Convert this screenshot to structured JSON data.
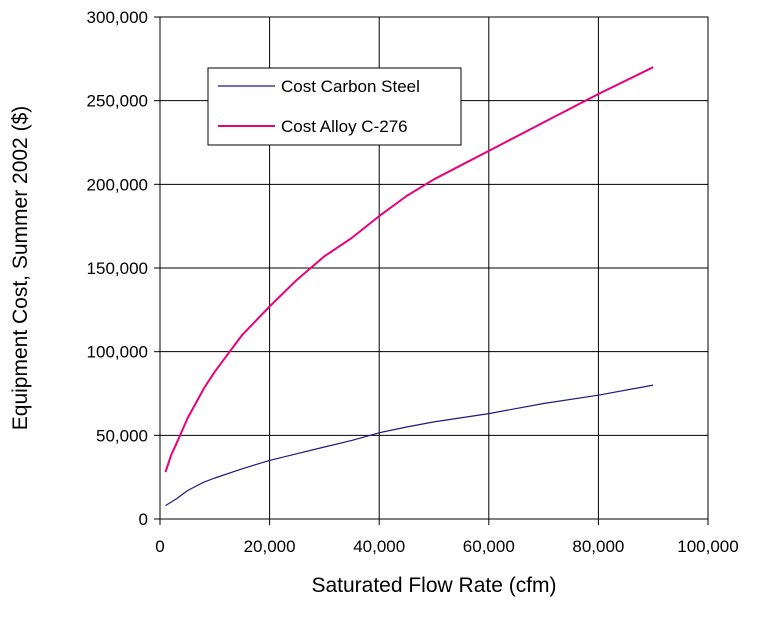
{
  "chart_data": {
    "type": "line",
    "title": "",
    "xlabel": "Saturated Flow Rate  (cfm)",
    "ylabel": "Equipment Cost, Summer 2002 ($)",
    "xlim": [
      0,
      100000
    ],
    "ylim": [
      0,
      300000
    ],
    "x_ticks": [
      0,
      20000,
      40000,
      60000,
      80000,
      100000
    ],
    "y_ticks": [
      0,
      50000,
      100000,
      150000,
      200000,
      250000,
      300000
    ],
    "x_tick_labels": [
      "0",
      "20,000",
      "40,000",
      "60,000",
      "80,000",
      "100,000"
    ],
    "y_tick_labels": [
      "0",
      "50,000",
      "100,000",
      "150,000",
      "200,000",
      "250,000",
      "300,000"
    ],
    "grid": true,
    "legend_position": "upper-left inside plot",
    "series": [
      {
        "name": "Cost Carbon Steel",
        "color": "#1b1b80",
        "points": [
          [
            1000,
            8000
          ],
          [
            3000,
            12000
          ],
          [
            5000,
            17000
          ],
          [
            8000,
            22000
          ],
          [
            10000,
            24500
          ],
          [
            15000,
            30000
          ],
          [
            20000,
            35000
          ],
          [
            25000,
            39000
          ],
          [
            30000,
            43000
          ],
          [
            35000,
            47000
          ],
          [
            40000,
            51500
          ],
          [
            45000,
            55000
          ],
          [
            50000,
            58000
          ],
          [
            60000,
            63000
          ],
          [
            70000,
            69000
          ],
          [
            80000,
            74000
          ],
          [
            90000,
            80000
          ]
        ]
      },
      {
        "name": "Cost  Alloy C-276",
        "color": "#e8007c",
        "points": [
          [
            1000,
            28000
          ],
          [
            2000,
            38000
          ],
          [
            3000,
            45000
          ],
          [
            5000,
            60000
          ],
          [
            8000,
            78000
          ],
          [
            10000,
            88000
          ],
          [
            15000,
            110000
          ],
          [
            20000,
            127000
          ],
          [
            25000,
            143000
          ],
          [
            30000,
            157000
          ],
          [
            35000,
            168000
          ],
          [
            40000,
            181000
          ],
          [
            45000,
            193000
          ],
          [
            50000,
            203000
          ],
          [
            60000,
            220000
          ],
          [
            70000,
            237000
          ],
          [
            80000,
            254000
          ],
          [
            90000,
            270000
          ]
        ]
      }
    ]
  }
}
